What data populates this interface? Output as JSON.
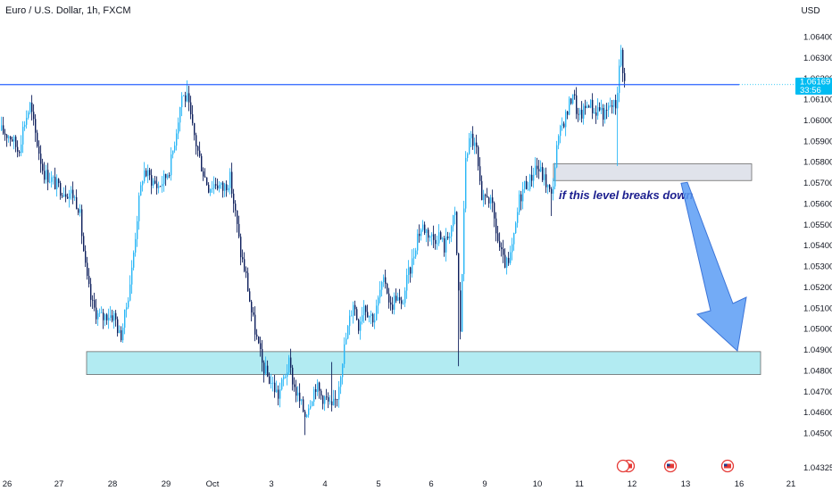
{
  "header": {
    "symbol_title": "Euro / U.S. Dollar, 1h, FXCM",
    "currency": "USD"
  },
  "chart_data": {
    "type": "candlestick",
    "symbol": "Euro / U.S. Dollar",
    "interval": "1h",
    "source": "FXCM",
    "price_axis": {
      "ticks": [
        1.064,
        1.063,
        1.062,
        1.061,
        1.06,
        1.059,
        1.058,
        1.057,
        1.056,
        1.055,
        1.054,
        1.053,
        1.052,
        1.051,
        1.05,
        1.049,
        1.048,
        1.047,
        1.046,
        1.045
      ],
      "tick_labels": [
        "1.06400",
        "1.06300",
        "1.06200",
        "1.06100",
        "1.06000",
        "1.05900",
        "1.05800",
        "1.05700",
        "1.05600",
        "1.05500",
        "1.05400",
        "1.05300",
        "1.05200",
        "1.05100",
        "1.05000",
        "1.04900",
        "1.04800",
        "1.04700",
        "1.04600",
        "1.04500"
      ],
      "bottom_label": "1.04325",
      "range": [
        1.04325,
        1.06675
      ]
    },
    "time_axis": {
      "labels": [
        "26",
        "27",
        "28",
        "29",
        "Oct",
        "3",
        "4",
        "5",
        "6",
        "9",
        "10",
        "11",
        "12",
        "13",
        "16",
        "21"
      ]
    },
    "current_price": {
      "value": 1.06169,
      "label": "1.06169",
      "countdown": "33:56",
      "color": "#00bcf2"
    },
    "horizontal_line": {
      "price": 1.0617,
      "color": "#2962ff"
    },
    "zones": [
      {
        "name": "resistance-break-zone",
        "from": 1.0571,
        "to": 1.0579,
        "color": "#e0e3eb"
      },
      {
        "name": "demand-zone",
        "from": 1.0478,
        "to": 1.0489,
        "color": "#b2ebf2"
      }
    ],
    "annotation": {
      "text": "if this level breaks down",
      "color": "#1c1f8f"
    },
    "arrow": {
      "from_price": 1.0571,
      "to_price": 1.0489,
      "color": "#5b9cf5"
    },
    "colors": {
      "bullish": "#29b6f6",
      "bearish": "#0d1f5c"
    },
    "anchors": [
      [
        0,
        1.0595
      ],
      [
        12,
        1.0592
      ],
      [
        20,
        1.0585
      ],
      [
        26,
        1.0598
      ],
      [
        33,
        1.0607
      ],
      [
        40,
        1.0591
      ],
      [
        48,
        1.0575
      ],
      [
        56,
        1.0572
      ],
      [
        64,
        1.0568
      ],
      [
        72,
        1.0566
      ],
      [
        80,
        1.0565
      ],
      [
        88,
        1.0558
      ],
      [
        96,
        1.0525
      ],
      [
        102,
        1.0512
      ],
      [
        108,
        1.0507
      ],
      [
        114,
        1.0505
      ],
      [
        120,
        1.0507
      ],
      [
        128,
        1.0506
      ],
      [
        134,
        1.0495
      ],
      [
        140,
        1.0508
      ],
      [
        147,
        1.0528
      ],
      [
        154,
        1.0558
      ],
      [
        160,
        1.0576
      ],
      [
        168,
        1.0572
      ],
      [
        176,
        1.0568
      ],
      [
        184,
        1.0572
      ],
      [
        190,
        1.0578
      ],
      [
        196,
        1.0593
      ],
      [
        203,
        1.0612
      ],
      [
        209,
        1.061
      ],
      [
        215,
        1.0596
      ],
      [
        221,
        1.0585
      ],
      [
        227,
        1.0575
      ],
      [
        233,
        1.0568
      ],
      [
        241,
        1.057
      ],
      [
        249,
        1.0567
      ],
      [
        257,
        1.0572
      ],
      [
        263,
        1.0555
      ],
      [
        269,
        1.0536
      ],
      [
        275,
        1.0525
      ],
      [
        281,
        1.0508
      ],
      [
        287,
        1.0495
      ],
      [
        293,
        1.0483
      ],
      [
        299,
        1.0477
      ],
      [
        305,
        1.0473
      ],
      [
        311,
        1.0468
      ],
      [
        317,
        1.0476
      ],
      [
        323,
        1.0483
      ],
      [
        329,
        1.0472
      ],
      [
        335,
        1.0465
      ],
      [
        341,
        1.0459
      ],
      [
        347,
        1.0466
      ],
      [
        353,
        1.0473
      ],
      [
        359,
        1.0468
      ],
      [
        365,
        1.0466
      ],
      [
        371,
        1.0461
      ],
      [
        377,
        1.0468
      ],
      [
        383,
        1.0486
      ],
      [
        389,
        1.05
      ],
      [
        395,
        1.0513
      ],
      [
        401,
        1.0502
      ],
      [
        407,
        1.0512
      ],
      [
        413,
        1.0507
      ],
      [
        419,
        1.0505
      ],
      [
        425,
        1.0518
      ],
      [
        431,
        1.0523
      ],
      [
        437,
        1.051
      ],
      [
        443,
        1.0516
      ],
      [
        449,
        1.051
      ],
      [
        455,
        1.0523
      ],
      [
        461,
        1.0532
      ],
      [
        467,
        1.0545
      ],
      [
        473,
        1.0549
      ],
      [
        479,
        1.0546
      ],
      [
        485,
        1.0543
      ],
      [
        491,
        1.0545
      ],
      [
        497,
        1.0539
      ],
      [
        503,
        1.0547
      ],
      [
        509,
        1.0554
      ],
      [
        515,
        1.0499
      ],
      [
        521,
        1.0583
      ],
      [
        527,
        1.0592
      ],
      [
        533,
        1.0585
      ],
      [
        539,
        1.0559
      ],
      [
        545,
        1.0565
      ],
      [
        551,
        1.0557
      ],
      [
        557,
        1.0542
      ],
      [
        563,
        1.0532
      ],
      [
        569,
        1.053
      ],
      [
        575,
        1.0543
      ],
      [
        581,
        1.0562
      ],
      [
        587,
        1.0569
      ],
      [
        593,
        1.0571
      ],
      [
        599,
        1.0578
      ],
      [
        605,
        1.0575
      ],
      [
        611,
        1.057
      ],
      [
        617,
        1.0563
      ],
      [
        623,
        1.0586
      ],
      [
        629,
        1.0598
      ],
      [
        635,
        1.0604
      ],
      [
        641,
        1.0614
      ],
      [
        647,
        1.0601
      ],
      [
        653,
        1.0604
      ],
      [
        659,
        1.0609
      ],
      [
        665,
        1.0604
      ],
      [
        671,
        1.0606
      ],
      [
        677,
        1.0602
      ],
      [
        683,
        1.0607
      ],
      [
        689,
        1.0607
      ],
      [
        695,
        1.0633
      ],
      [
        699,
        1.0618
      ]
    ]
  }
}
